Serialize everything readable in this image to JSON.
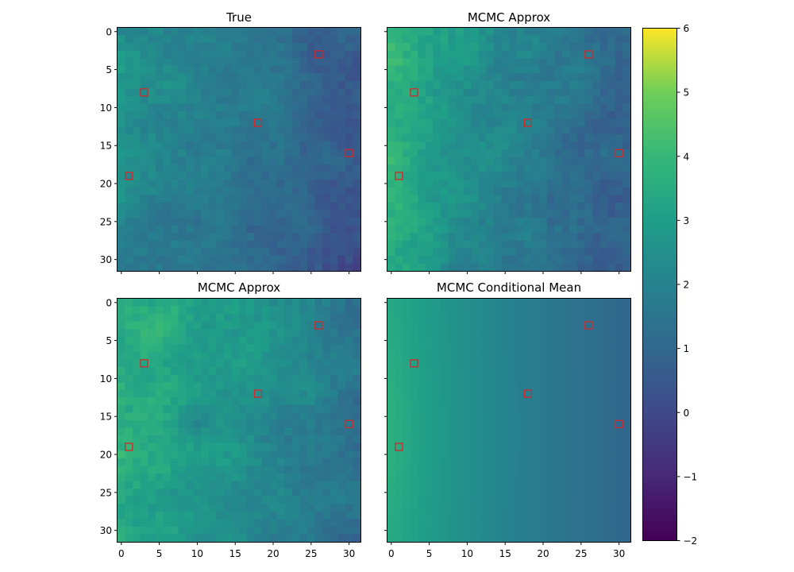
{
  "chart_data": {
    "type": "heatmap",
    "grid_size": 32,
    "colormap": "viridis",
    "colorbar": {
      "vmin": -2,
      "vmax": 6,
      "ticks": [
        "6",
        "5",
        "4",
        "3",
        "2",
        "1",
        "0",
        "−1",
        "−2"
      ]
    },
    "observation_marker_color": "#d62728",
    "observations": [
      {
        "x": 26,
        "y": 3
      },
      {
        "x": 3,
        "y": 8
      },
      {
        "x": 18,
        "y": 12
      },
      {
        "x": 30,
        "y": 16
      },
      {
        "x": 1,
        "y": 19
      }
    ],
    "x_ticks": [
      "0",
      "5",
      "10",
      "15",
      "20",
      "25",
      "30"
    ],
    "y_ticks": [
      "0",
      "5",
      "10",
      "15",
      "20",
      "25",
      "30"
    ],
    "panels": [
      {
        "title": "True",
        "field": "random",
        "mean_profile": [
          2.3,
          1.9,
          1.5,
          1.0,
          0.4
        ],
        "seed": 11
      },
      {
        "title": "MCMC Approx",
        "field": "random",
        "mean_profile": [
          3.6,
          2.7,
          2.0,
          1.4,
          0.8
        ],
        "seed": 23
      },
      {
        "title": "MCMC Approx",
        "field": "random",
        "mean_profile": [
          3.5,
          3.0,
          2.6,
          2.0,
          1.4
        ],
        "seed": 37
      },
      {
        "title": "MCMC Conditional Mean",
        "field": "smooth",
        "mean_profile": [
          3.3,
          2.6,
          2.0,
          1.4,
          1.0
        ],
        "seed": 0
      }
    ]
  }
}
